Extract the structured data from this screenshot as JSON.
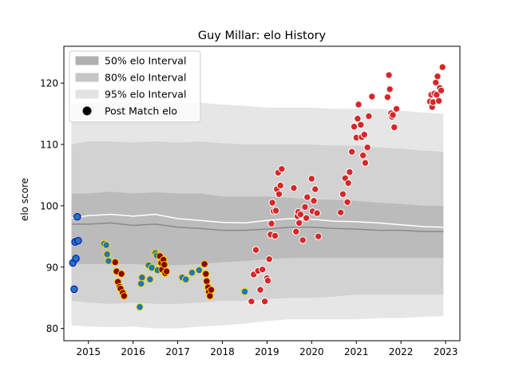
{
  "chart_data": {
    "type": "scatter",
    "title": "Guy Millar: elo History",
    "xlabel": "",
    "ylabel": "elo score",
    "xlim": [
      2014.45,
      2023.32
    ],
    "ylim": [
      78,
      126
    ],
    "xticks": [
      2015,
      2016,
      2017,
      2018,
      2019,
      2020,
      2021,
      2022,
      2023
    ],
    "yticks": [
      80,
      90,
      100,
      110,
      120
    ],
    "grid": false,
    "legend_position": "upper-left",
    "legend": [
      {
        "label": "50% elo Interval",
        "kind": "band",
        "color": "#b0b0b0"
      },
      {
        "label": "80% elo Interval",
        "kind": "band",
        "color": "#c6c6c6"
      },
      {
        "label": "95% elo Interval",
        "kind": "band",
        "color": "#e3e3e3"
      },
      {
        "label": "Post Match elo",
        "kind": "marker",
        "color": "#000000"
      }
    ],
    "colors": {
      "band50": "#bbbbbb",
      "band80": "#d2d2d2",
      "band95": "#e6e6e6",
      "mean_line": "#ffffff",
      "median_line": "#8a8a8a",
      "point_blue": "#1f77b4",
      "point_red": "#d62728",
      "point_darkred": "#8b0000",
      "edge_yellow": "#ffd700",
      "edge_blue": "#0000cd",
      "edge_white": "#ffffff"
    },
    "bands": {
      "x": [
        2014.62,
        2015.0,
        2015.5,
        2016.0,
        2016.5,
        2017.0,
        2017.5,
        2018.0,
        2018.5,
        2019.0,
        2019.5,
        2020.0,
        2020.5,
        2021.0,
        2021.5,
        2022.0,
        2022.5,
        2022.95
      ],
      "p95_upper": [
        116.5,
        116.8,
        117.0,
        116.8,
        117.0,
        116.8,
        116.8,
        116.5,
        116.3,
        116.0,
        116.0,
        116.0,
        115.8,
        115.8,
        115.8,
        115.5,
        115.2,
        115.0
      ],
      "p95_lower": [
        80.5,
        80.3,
        80.2,
        80.3,
        80.0,
        80.0,
        80.3,
        80.5,
        80.8,
        81.2,
        81.5,
        81.5,
        81.5,
        81.5,
        81.7,
        81.7,
        81.9,
        82.0
      ],
      "p80_upper": [
        110.0,
        110.5,
        110.5,
        110.3,
        110.5,
        110.3,
        110.5,
        110.2,
        110.0,
        110.0,
        110.0,
        110.0,
        109.8,
        109.8,
        109.5,
        109.3,
        109.0,
        108.8
      ],
      "p80_lower": [
        84.5,
        84.2,
        84.0,
        84.2,
        84.0,
        84.0,
        84.2,
        84.5,
        84.5,
        84.8,
        85.0,
        85.0,
        85.2,
        85.5,
        85.5,
        85.5,
        85.5,
        85.5
      ],
      "p50_upper": [
        102.0,
        102.0,
        102.3,
        102.0,
        102.2,
        102.0,
        102.0,
        101.5,
        101.5,
        101.5,
        101.3,
        101.0,
        101.0,
        100.8,
        100.5,
        100.3,
        100.0,
        100.0
      ],
      "p50_lower": [
        90.5,
        90.5,
        90.5,
        90.5,
        90.3,
        90.3,
        90.5,
        90.8,
        91.0,
        91.3,
        91.5,
        91.5,
        91.5,
        91.5,
        91.5,
        91.5,
        91.5,
        91.5
      ],
      "mean": [
        98.0,
        98.4,
        98.6,
        98.3,
        98.6,
        97.9,
        97.6,
        97.3,
        97.2,
        97.6,
        97.9,
        97.8,
        97.5,
        97.4,
        97.2,
        96.9,
        96.6,
        96.5
      ],
      "median": [
        97.0,
        97.0,
        97.2,
        96.8,
        97.0,
        96.5,
        96.3,
        96.0,
        96.0,
        96.2,
        96.5,
        96.5,
        96.3,
        96.2,
        96.0,
        96.0,
        95.8,
        95.8
      ]
    },
    "series": [
      {
        "fill": "point_blue",
        "edge": "edge_blue",
        "points": [
          [
            2014.65,
            90.7
          ],
          [
            2014.68,
            86.4
          ],
          [
            2014.7,
            94.1
          ],
          [
            2014.72,
            91.4
          ],
          [
            2014.75,
            98.2
          ],
          [
            2014.77,
            94.3
          ]
        ]
      },
      {
        "fill": "point_blue",
        "edge": "edge_yellow",
        "points": [
          [
            2015.35,
            93.8
          ],
          [
            2015.4,
            93.6
          ],
          [
            2015.42,
            92.1
          ],
          [
            2015.45,
            91.0
          ],
          [
            2016.15,
            83.5
          ],
          [
            2016.18,
            87.3
          ],
          [
            2016.2,
            88.3
          ],
          [
            2016.35,
            90.3
          ],
          [
            2016.38,
            88.0
          ],
          [
            2016.42,
            89.9
          ],
          [
            2016.5,
            92.3
          ],
          [
            2016.53,
            91.9
          ],
          [
            2016.55,
            89.5
          ],
          [
            2017.1,
            88.3
          ],
          [
            2017.18,
            88.0
          ],
          [
            2017.32,
            89.1
          ],
          [
            2017.48,
            89.5
          ],
          [
            2018.5,
            86.0
          ]
        ]
      },
      {
        "fill": "point_darkred",
        "edge": "edge_yellow",
        "points": [
          [
            2015.6,
            90.8
          ],
          [
            2015.63,
            89.3
          ],
          [
            2015.66,
            87.6
          ],
          [
            2015.7,
            86.8
          ],
          [
            2015.72,
            86.5
          ],
          [
            2015.74,
            88.9
          ],
          [
            2015.77,
            85.8
          ],
          [
            2015.8,
            85.3
          ],
          [
            2016.6,
            91.8
          ],
          [
            2016.63,
            90.7
          ],
          [
            2016.65,
            89.6
          ],
          [
            2016.68,
            91.2
          ],
          [
            2016.7,
            90.4
          ],
          [
            2016.72,
            89.0
          ],
          [
            2016.75,
            89.3
          ],
          [
            2017.6,
            90.5
          ],
          [
            2017.63,
            88.9
          ],
          [
            2017.65,
            87.7
          ],
          [
            2017.68,
            86.7
          ],
          [
            2017.7,
            86.0
          ],
          [
            2017.72,
            85.3
          ],
          [
            2017.75,
            86.3
          ]
        ]
      },
      {
        "fill": "point_red",
        "edge": "edge_white",
        "points": [
          [
            2018.65,
            84.4
          ],
          [
            2018.7,
            88.8
          ],
          [
            2018.75,
            92.8
          ],
          [
            2018.8,
            89.4
          ],
          [
            2018.85,
            86.3
          ],
          [
            2018.9,
            89.6
          ],
          [
            2018.95,
            84.4
          ],
          [
            2019.0,
            88.2
          ],
          [
            2019.02,
            87.8
          ],
          [
            2019.05,
            91.3
          ],
          [
            2019.08,
            95.3
          ],
          [
            2019.1,
            97.1
          ],
          [
            2019.12,
            100.5
          ],
          [
            2019.15,
            99.1
          ],
          [
            2019.18,
            95.1
          ],
          [
            2019.2,
            99.2
          ],
          [
            2019.22,
            102.7
          ],
          [
            2019.25,
            105.4
          ],
          [
            2019.27,
            101.9
          ],
          [
            2019.3,
            103.3
          ],
          [
            2019.33,
            106.0
          ],
          [
            2019.6,
            102.9
          ],
          [
            2019.65,
            95.8
          ],
          [
            2019.68,
            98.3
          ],
          [
            2019.7,
            99.0
          ],
          [
            2019.72,
            97.2
          ],
          [
            2019.75,
            98.6
          ],
          [
            2019.8,
            94.4
          ],
          [
            2019.85,
            99.8
          ],
          [
            2019.88,
            98.0
          ],
          [
            2019.9,
            101.4
          ],
          [
            2020.0,
            104.4
          ],
          [
            2020.02,
            99.1
          ],
          [
            2020.05,
            100.8
          ],
          [
            2020.08,
            102.7
          ],
          [
            2020.12,
            98.8
          ],
          [
            2020.15,
            95.0
          ],
          [
            2020.65,
            98.9
          ],
          [
            2020.7,
            101.9
          ],
          [
            2020.75,
            104.5
          ],
          [
            2020.8,
            100.6
          ],
          [
            2020.82,
            103.7
          ],
          [
            2020.85,
            105.5
          ],
          [
            2020.9,
            108.8
          ],
          [
            2020.95,
            112.9
          ],
          [
            2021.0,
            111.1
          ],
          [
            2021.03,
            114.2
          ],
          [
            2021.05,
            116.5
          ],
          [
            2021.1,
            113.2
          ],
          [
            2021.12,
            111.2
          ],
          [
            2021.15,
            108.2
          ],
          [
            2021.18,
            111.6
          ],
          [
            2021.2,
            107.0
          ],
          [
            2021.25,
            109.5
          ],
          [
            2021.28,
            114.6
          ],
          [
            2021.35,
            117.8
          ],
          [
            2021.7,
            117.7
          ],
          [
            2021.73,
            121.3
          ],
          [
            2021.75,
            119.0
          ],
          [
            2021.78,
            115.1
          ],
          [
            2021.8,
            114.5
          ],
          [
            2021.82,
            114.8
          ],
          [
            2021.85,
            112.8
          ],
          [
            2021.9,
            115.8
          ],
          [
            2022.65,
            117.0
          ],
          [
            2022.68,
            118.1
          ],
          [
            2022.7,
            116.1
          ],
          [
            2022.72,
            116.9
          ],
          [
            2022.75,
            118.3
          ],
          [
            2022.78,
            120.1
          ],
          [
            2022.8,
            118.1
          ],
          [
            2022.82,
            121.1
          ],
          [
            2022.85,
            117.1
          ],
          [
            2022.87,
            119.2
          ],
          [
            2022.9,
            118.8
          ],
          [
            2022.93,
            122.6
          ]
        ]
      }
    ]
  }
}
